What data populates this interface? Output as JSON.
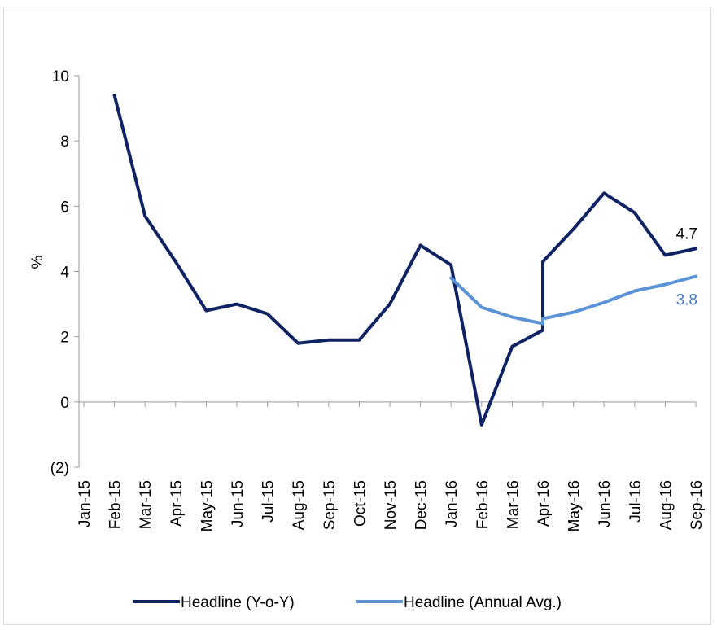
{
  "chart_data": {
    "type": "line",
    "categories": [
      "Jan-15",
      "Feb-15",
      "Mar-15",
      "Apr-15",
      "May-15",
      "Jun-15",
      "Jul-15",
      "Aug-15",
      "Sep-15",
      "Oct-15",
      "Nov-15",
      "Dec-15",
      "Jan-16",
      "Feb-16",
      "Mar-16",
      "Apr-16",
      "May-16",
      "Jun-16",
      "Jul-16",
      "Aug-16",
      "Sep-16"
    ],
    "ylabel": "%",
    "ylim": [
      -2,
      10
    ],
    "ytick_values": [
      -2,
      0,
      2,
      4,
      6,
      8,
      10
    ],
    "ytick_labels": [
      "(2)",
      "0",
      "2",
      "4",
      "6",
      "8",
      "10"
    ],
    "grid": false,
    "legend_position": "bottom",
    "series": [
      {
        "name": "Headline (Y-o-Y)",
        "color": "#0e2264",
        "points": [
          {
            "x": "Feb-15",
            "y": 9.4
          },
          {
            "x": "Mar-15",
            "y": 5.7
          },
          {
            "x": "Apr-15",
            "y": 4.3
          },
          {
            "x": "May-15",
            "y": 2.8
          },
          {
            "x": "Jun-15",
            "y": 3.0
          },
          {
            "x": "Jul-15",
            "y": 2.7
          },
          {
            "x": "Aug-15",
            "y": 1.8
          },
          {
            "x": "Sep-15",
            "y": 1.9
          },
          {
            "x": "Oct-15",
            "y": 1.9
          },
          {
            "x": "Nov-15",
            "y": 3.0
          },
          {
            "x": "Dec-15",
            "y": 4.8
          },
          {
            "x": "Jan-16",
            "y": 4.2
          },
          {
            "x": "Feb-16",
            "y": -0.7
          },
          {
            "x": "Mar-16",
            "y": 1.7
          },
          {
            "x": "Apr-16",
            "y": 2.2
          },
          {
            "x": "Apr-16",
            "y": 4.3
          },
          {
            "x": "May-16",
            "y": 5.3
          },
          {
            "x": "Jun-16",
            "y": 6.4
          },
          {
            "x": "Jul-16",
            "y": 5.8
          },
          {
            "x": "Aug-16",
            "y": 4.5
          },
          {
            "x": "Sep-16",
            "y": 4.7
          }
        ],
        "end_label": "4.7",
        "end_label_color": "#000000"
      },
      {
        "name": "Headline (Annual Avg.)",
        "color": "#5b93d6",
        "points": [
          {
            "x": "Jan-16",
            "y": 3.8
          },
          {
            "x": "Feb-16",
            "y": 2.9
          },
          {
            "x": "Mar-16",
            "y": 2.6
          },
          {
            "x": "Apr-16",
            "y": 2.4
          },
          {
            "x": "Apr-16",
            "y": 2.55
          },
          {
            "x": "May-16",
            "y": 2.75
          },
          {
            "x": "Jun-16",
            "y": 3.05
          },
          {
            "x": "Jul-16",
            "y": 3.4
          },
          {
            "x": "Aug-16",
            "y": 3.6
          },
          {
            "x": "Sep-16",
            "y": 3.85
          }
        ],
        "end_label": "3.8",
        "end_label_color": "#4a78c0"
      }
    ]
  }
}
